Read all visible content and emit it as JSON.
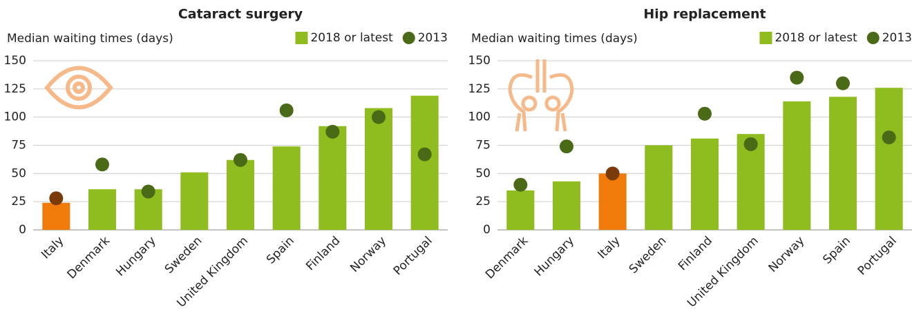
{
  "chart_data": [
    {
      "type": "bar",
      "title": "Cataract surgery",
      "y_label": "Median waiting times (days)",
      "categories": [
        "Italy",
        "Denmark",
        "Hungary",
        "Sweden",
        "United Kingdom",
        "Spain",
        "Finland",
        "Norway",
        "Portugal"
      ],
      "series": [
        {
          "name": "2018 or latest",
          "color": "#8fbc1f",
          "values": [
            24,
            36,
            36,
            51,
            62,
            74,
            92,
            108,
            119
          ],
          "colors": [
            "#f07a0a",
            "#8fbc1f",
            "#8fbc1f",
            "#8fbc1f",
            "#8fbc1f",
            "#8fbc1f",
            "#8fbc1f",
            "#8fbc1f",
            "#8fbc1f"
          ]
        },
        {
          "name": "2013",
          "color": "#4b6a17",
          "marker": "dot",
          "values": [
            28,
            58,
            34,
            null,
            62,
            106,
            87,
            100,
            67
          ],
          "colors": [
            "#7a3a0a",
            "#4b6a17",
            "#4b6a17",
            "#4b6a17",
            "#4b6a17",
            "#4b6a17",
            "#4b6a17",
            "#4b6a17",
            "#4b6a17"
          ]
        }
      ],
      "ylim": [
        0,
        150
      ],
      "yticks": [
        0,
        25,
        50,
        75,
        100,
        125,
        150
      ],
      "grid": true,
      "legend": "top-right"
    },
    {
      "type": "bar",
      "title": "Hip replacement",
      "y_label": "Median waiting times (days)",
      "categories": [
        "Denmark",
        "Hungary",
        "Italy",
        "Sweden",
        "Finland",
        "United Kingdom",
        "Norway",
        "Spain",
        "Portugal"
      ],
      "series": [
        {
          "name": "2018 or latest",
          "color": "#8fbc1f",
          "values": [
            35,
            43,
            50,
            75,
            81,
            85,
            114,
            118,
            126
          ],
          "colors": [
            "#8fbc1f",
            "#8fbc1f",
            "#f07a0a",
            "#8fbc1f",
            "#8fbc1f",
            "#8fbc1f",
            "#8fbc1f",
            "#8fbc1f",
            "#8fbc1f"
          ]
        },
        {
          "name": "2013",
          "color": "#4b6a17",
          "marker": "dot",
          "values": [
            40,
            74,
            50,
            null,
            103,
            76,
            135,
            130,
            82
          ],
          "colors": [
            "#4b6a17",
            "#4b6a17",
            "#7a3a0a",
            "#4b6a17",
            "#4b6a17",
            "#4b6a17",
            "#4b6a17",
            "#4b6a17",
            "#4b6a17"
          ]
        }
      ],
      "ylim": [
        0,
        150
      ],
      "yticks": [
        0,
        25,
        50,
        75,
        100,
        125,
        150
      ],
      "grid": true,
      "legend": "top-right"
    }
  ]
}
